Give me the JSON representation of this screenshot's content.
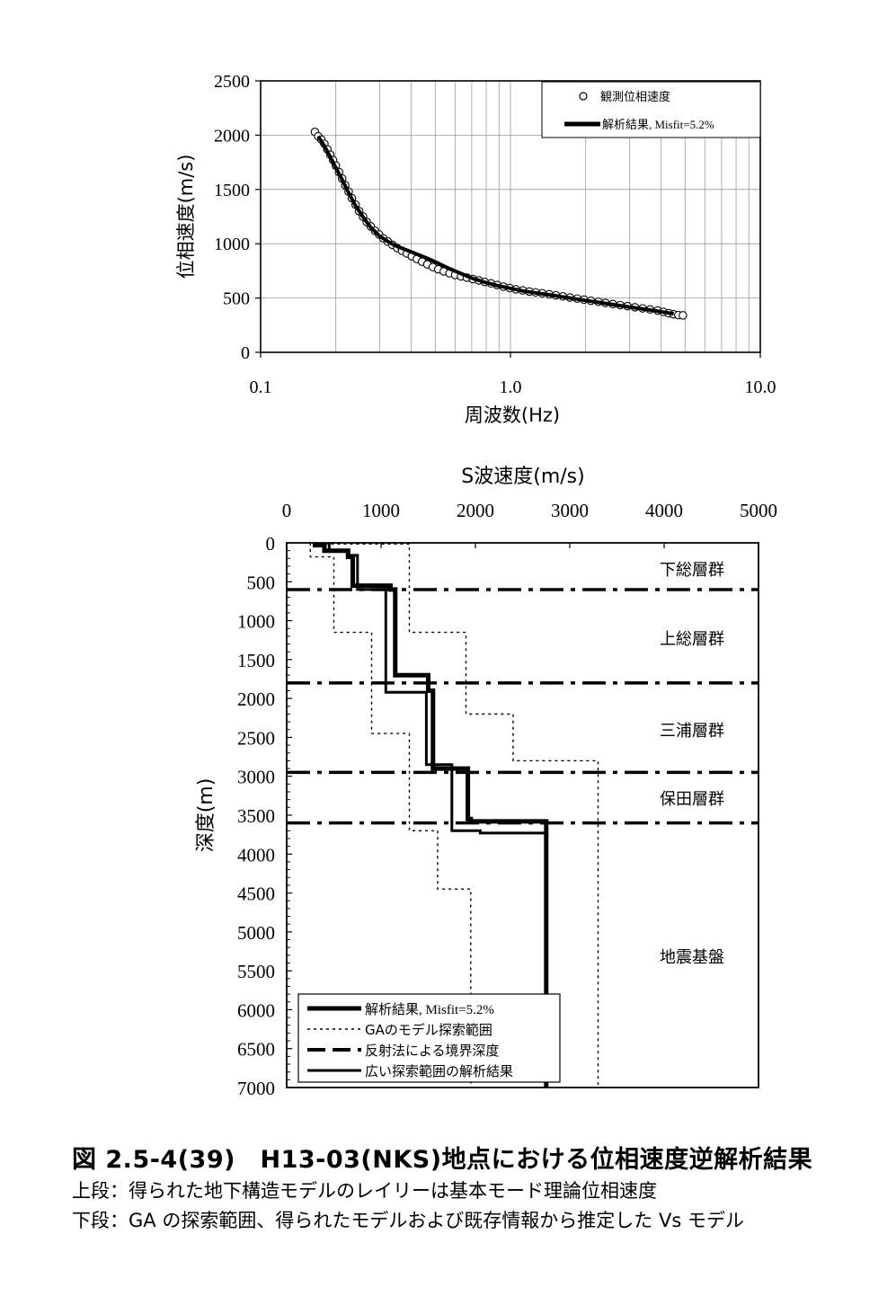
{
  "chart_data": [
    {
      "type": "scatter",
      "xlabel": "周波数(Hz)",
      "ylabel": "位相速度(m/s)",
      "xscale": "log",
      "xlim": [
        0.1,
        10.0
      ],
      "ylim": [
        0,
        2500
      ],
      "xticks": [
        "0.1",
        "1.0",
        "10.0"
      ],
      "yticks": [
        "0",
        "500",
        "1000",
        "1500",
        "2000",
        "2500"
      ],
      "grid": true,
      "legend_position": "top-right",
      "series": [
        {
          "name": "観測位相速度",
          "style": "open-circle",
          "x": [
            0.165,
            0.17,
            0.175,
            0.18,
            0.185,
            0.19,
            0.195,
            0.2,
            0.206,
            0.212,
            0.218,
            0.225,
            0.232,
            0.24,
            0.248,
            0.257,
            0.266,
            0.276,
            0.287,
            0.298,
            0.31,
            0.323,
            0.337,
            0.352,
            0.368,
            0.385,
            0.403,
            0.422,
            0.443,
            0.465,
            0.489,
            0.514,
            0.541,
            0.57,
            0.601,
            0.634,
            0.669,
            0.707,
            0.747,
            0.79,
            0.836,
            0.885,
            0.937,
            0.993,
            1.05,
            1.12,
            1.19,
            1.26,
            1.34,
            1.43,
            1.52,
            1.62,
            1.73,
            1.85,
            1.97,
            2.1,
            2.25,
            2.4,
            2.57,
            2.75,
            2.94,
            3.15,
            3.38,
            3.62,
            3.88,
            4.1,
            4.3,
            4.5,
            4.7,
            4.9
          ],
          "y": [
            2030,
            1990,
            1960,
            1920,
            1870,
            1820,
            1770,
            1720,
            1660,
            1600,
            1540,
            1480,
            1420,
            1360,
            1300,
            1250,
            1200,
            1160,
            1120,
            1085,
            1050,
            1020,
            990,
            960,
            935,
            910,
            885,
            860,
            835,
            810,
            785,
            765,
            745,
            728,
            712,
            700,
            688,
            675,
            662,
            648,
            635,
            620,
            605,
            592,
            580,
            570,
            560,
            552,
            544,
            535,
            525,
            515,
            505,
            495,
            485,
            475,
            465,
            455,
            445,
            435,
            425,
            415,
            405,
            395,
            385,
            372,
            360,
            350,
            342,
            340
          ]
        },
        {
          "name": "解析結果, Misfit=5.2%",
          "style": "thick-line",
          "x": [
            0.17,
            0.18,
            0.19,
            0.2,
            0.212,
            0.225,
            0.24,
            0.257,
            0.276,
            0.298,
            0.323,
            0.352,
            0.385,
            0.422,
            0.465,
            0.514,
            0.57,
            0.634,
            0.707,
            0.79,
            0.885,
            0.993,
            1.12,
            1.26,
            1.43,
            1.62,
            1.85,
            2.1,
            2.4,
            2.75,
            3.15,
            3.62,
            4.1,
            4.5
          ],
          "y": [
            1990,
            1900,
            1800,
            1700,
            1590,
            1470,
            1350,
            1245,
            1150,
            1075,
            1020,
            975,
            940,
            905,
            865,
            820,
            770,
            725,
            680,
            645,
            615,
            590,
            565,
            548,
            530,
            510,
            490,
            470,
            450,
            430,
            410,
            390,
            370,
            355
          ]
        }
      ]
    },
    {
      "type": "line",
      "title": "S波速度(m/s)",
      "xlabel": "S波速度(m/s)",
      "ylabel": "深度(m)",
      "xlim": [
        0,
        5000
      ],
      "ylim": [
        7000,
        0
      ],
      "xticks": [
        "0",
        "1000",
        "2000",
        "3000",
        "4000",
        "5000"
      ],
      "yticks": [
        "0",
        "500",
        "1000",
        "1500",
        "2000",
        "2500",
        "3000",
        "3500",
        "4000",
        "4500",
        "5000",
        "5500",
        "6000",
        "6500",
        "7000"
      ],
      "legend_position": "bottom-left",
      "series": [
        {
          "name": "解析結果, Misfit=5.2%",
          "style": "thick-solid",
          "x": [
            300,
            300,
            400,
            400,
            650,
            650,
            700,
            700,
            1100,
            1100,
            1150,
            1150,
            1500,
            1500,
            1550,
            1550,
            1920,
            1920,
            1950,
            1950,
            2750,
            2750
          ],
          "y": [
            0,
            30,
            30,
            100,
            100,
            180,
            180,
            550,
            550,
            600,
            600,
            1700,
            1700,
            1900,
            1900,
            2900,
            2900,
            3550,
            3550,
            3580,
            3580,
            7000
          ]
        },
        {
          "name": "GAのモデル探索範囲",
          "style": "dotted",
          "x": [
            [
              250,
              250,
              500,
              500,
              900,
              900,
              1300,
              1300,
              1600,
              1600,
              1950,
              1950
            ],
            [
              350,
              350,
              1300,
              1300,
              1900,
              1900,
              2400,
              2400,
              3300,
              3300
            ]
          ],
          "y": [
            [
              0,
              180,
              180,
              1150,
              1150,
              2450,
              2450,
              3700,
              3700,
              4450,
              4450,
              7000
            ],
            [
              0,
              15,
              15,
              1150,
              1150,
              2200,
              2200,
              2800,
              2800,
              7000
            ]
          ]
        },
        {
          "name": "反射法による境界深度",
          "style": "dash-dot",
          "depths": [
            600,
            1800,
            2950,
            3600
          ]
        },
        {
          "name": "広い探索範囲の解析結果",
          "style": "solid",
          "x": [
            450,
            450,
            650,
            650,
            750,
            750,
            1050,
            1050,
            1480,
            1480,
            1750,
            1750,
            2050,
            2050,
            2750,
            2750
          ],
          "y": [
            0,
            100,
            100,
            160,
            160,
            600,
            600,
            1920,
            1920,
            2850,
            2850,
            3700,
            3700,
            3730,
            3730,
            7000
          ]
        }
      ],
      "annotations": [
        "下総層群",
        "上総層群",
        "三浦層群",
        "保田層群",
        "地震基盤"
      ]
    }
  ],
  "caption": {
    "title": "図 2.5-4(39)　H13-03(NKS)地点における位相速度逆解析結果",
    "line1": "上段：得られた地下構造モデルのレイリーは基本モード理論位相速度",
    "line2": "下段：GA の探索範囲、得られたモデルおよび既存情報から推定した Vs モデル"
  }
}
